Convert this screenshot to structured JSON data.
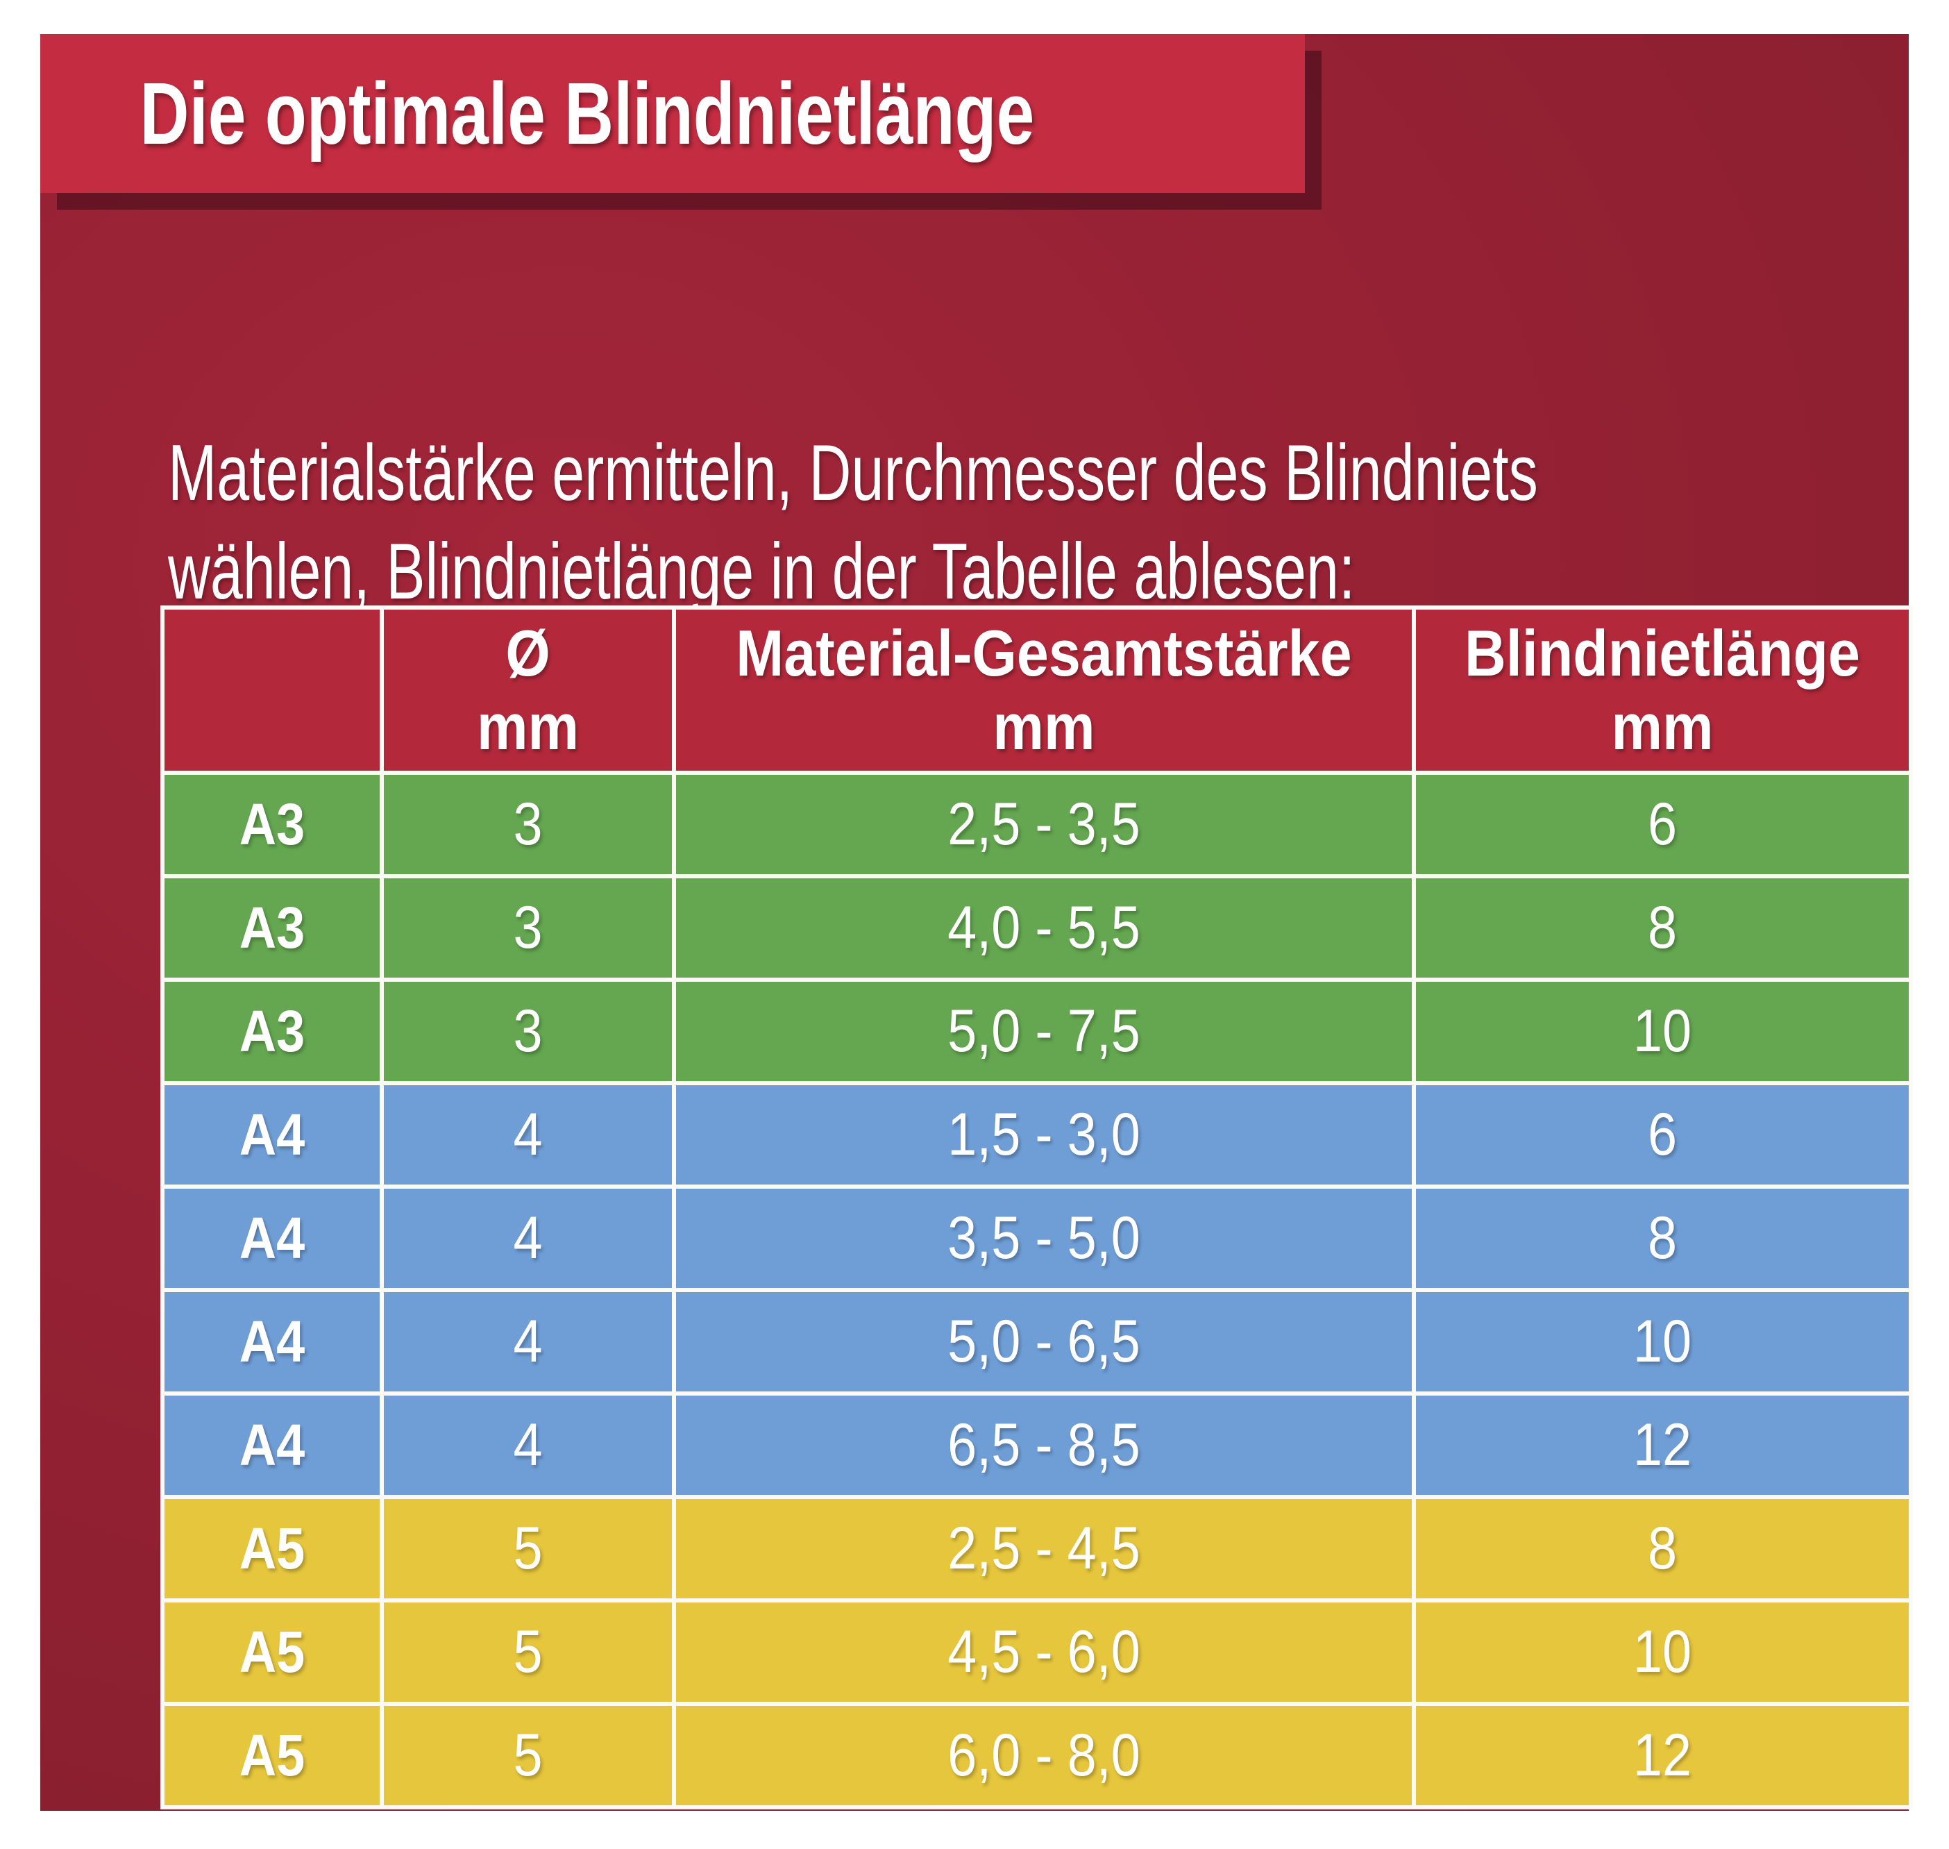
{
  "page": {
    "banner_title": "Die optimale Blindnietlänge"
  },
  "intro": {
    "lines": [
      "Materialstärke ermitteln, Durchmesser des Blindniets",
      "wählen, Blindnietlänge in der Tabelle ablesen:"
    ]
  },
  "table": {
    "columns": [
      {
        "title": "",
        "unit": ""
      },
      {
        "title": "Ø",
        "unit": "mm"
      },
      {
        "title": "Material-Gesamtstärke",
        "unit": "mm"
      },
      {
        "title": "Blindnietlänge",
        "unit": "mm"
      }
    ],
    "rows": [
      {
        "label": "A3",
        "diameter": "3",
        "material_range": "2,5 - 3,5",
        "rivet_length": "6",
        "group": "green"
      },
      {
        "label": "A3",
        "diameter": "3",
        "material_range": "4,0 - 5,5",
        "rivet_length": "8",
        "group": "green"
      },
      {
        "label": "A3",
        "diameter": "3",
        "material_range": "5,0 - 7,5",
        "rivet_length": "10",
        "group": "green"
      },
      {
        "label": "A4",
        "diameter": "4",
        "material_range": "1,5 - 3,0",
        "rivet_length": "6",
        "group": "blue"
      },
      {
        "label": "A4",
        "diameter": "4",
        "material_range": "3,5 - 5,0",
        "rivet_length": "8",
        "group": "blue"
      },
      {
        "label": "A4",
        "diameter": "4",
        "material_range": "5,0 - 6,5",
        "rivet_length": "10",
        "group": "blue"
      },
      {
        "label": "A4",
        "diameter": "4",
        "material_range": "6,5 - 8,5",
        "rivet_length": "12",
        "group": "blue"
      },
      {
        "label": "A5",
        "diameter": "5",
        "material_range": "2,5 - 4,5",
        "rivet_length": "8",
        "group": "yellow"
      },
      {
        "label": "A5",
        "diameter": "5",
        "material_range": "4,5 - 6,0",
        "rivet_length": "10",
        "group": "yellow"
      },
      {
        "label": "A5",
        "diameter": "5",
        "material_range": "6,0 - 8,0",
        "rivet_length": "12",
        "group": "yellow"
      }
    ]
  },
  "colors": {
    "background_light": "#a32539",
    "background_mid": "#8e2031",
    "background_dark": "#761b29",
    "banner_red": "#c32c41",
    "header_red": "#b3293b",
    "row_green": "#64a750",
    "row_blue": "#6f9ed7",
    "row_yellow": "#e6c63c",
    "gridline_white": "#fcfaf5",
    "text_white": "#ffffff"
  }
}
